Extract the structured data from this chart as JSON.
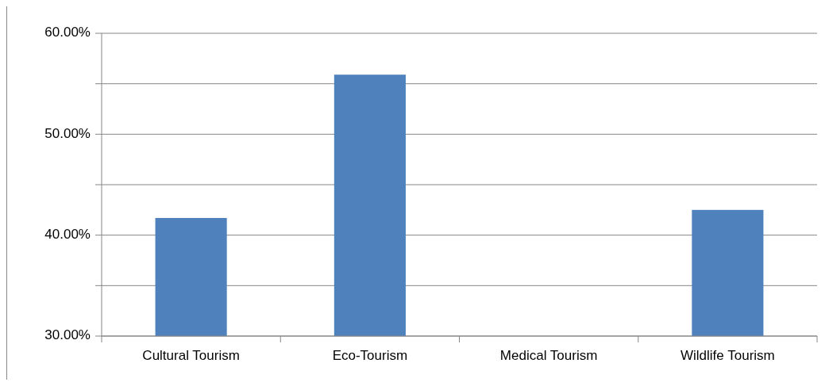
{
  "chart_data": {
    "type": "bar",
    "categories": [
      "Cultural Tourism",
      "Eco-Tourism",
      "Medical Tourism",
      "Wildlife Tourism"
    ],
    "values": [
      41.7,
      55.9,
      null,
      42.5
    ],
    "color": "#4f81bd",
    "ylim": [
      30,
      60
    ],
    "yticks": [
      {
        "value": 30,
        "label": "30.00%"
      },
      {
        "value": 35,
        "label": null
      },
      {
        "value": 40,
        "label": "40.00%"
      },
      {
        "value": 45,
        "label": null
      },
      {
        "value": 50,
        "label": "50.00%"
      },
      {
        "value": 55,
        "label": null
      },
      {
        "value": 60,
        "label": "60.00%"
      }
    ],
    "grid": "y"
  }
}
